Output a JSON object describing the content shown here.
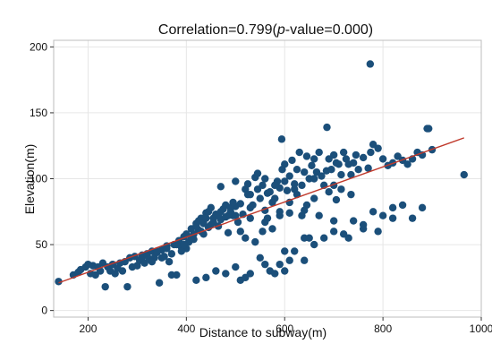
{
  "chart_data": {
    "type": "scatter",
    "title_prefix": "Correlation=0.799(",
    "title_italic": "p",
    "title_suffix": "-value=0.000)",
    "xlabel": "Distance to subway(m)",
    "ylabel": "Elevation(m)",
    "xlim": [
      130,
      1000
    ],
    "ylim": [
      -5,
      205
    ],
    "xticks": [
      200,
      400,
      600,
      800,
      1000
    ],
    "yticks": [
      0,
      50,
      100,
      150,
      200
    ],
    "grid": true,
    "colors": {
      "points": "#1b4f7a",
      "fit_line": "#c0392b"
    },
    "fit_line": {
      "x": [
        140,
        965
      ],
      "y": [
        21,
        131
      ]
    },
    "points": [
      [
        140,
        22
      ],
      [
        170,
        27
      ],
      [
        180,
        29
      ],
      [
        185,
        31
      ],
      [
        195,
        33
      ],
      [
        200,
        35
      ],
      [
        205,
        28
      ],
      [
        210,
        34
      ],
      [
        215,
        27
      ],
      [
        220,
        33
      ],
      [
        225,
        30
      ],
      [
        230,
        36
      ],
      [
        235,
        18
      ],
      [
        240,
        33
      ],
      [
        245,
        30
      ],
      [
        250,
        35
      ],
      [
        255,
        28
      ],
      [
        260,
        32
      ],
      [
        265,
        36
      ],
      [
        270,
        30
      ],
      [
        275,
        37
      ],
      [
        280,
        18
      ],
      [
        285,
        40
      ],
      [
        290,
        33
      ],
      [
        295,
        41
      ],
      [
        300,
        34
      ],
      [
        305,
        38
      ],
      [
        310,
        42
      ],
      [
        315,
        36
      ],
      [
        320,
        43
      ],
      [
        325,
        39
      ],
      [
        330,
        45
      ],
      [
        335,
        40
      ],
      [
        340,
        44
      ],
      [
        345,
        21
      ],
      [
        350,
        46
      ],
      [
        355,
        41
      ],
      [
        360,
        49
      ],
      [
        365,
        37
      ],
      [
        370,
        27
      ],
      [
        375,
        50
      ],
      [
        380,
        27
      ],
      [
        385,
        53
      ],
      [
        390,
        48
      ],
      [
        395,
        56
      ],
      [
        400,
        58
      ],
      [
        405,
        52
      ],
      [
        410,
        62
      ],
      [
        415,
        54
      ],
      [
        420,
        66
      ],
      [
        425,
        61
      ],
      [
        430,
        70
      ],
      [
        435,
        58
      ],
      [
        440,
        74
      ],
      [
        445,
        63
      ],
      [
        450,
        78
      ],
      [
        455,
        67
      ],
      [
        460,
        72
      ],
      [
        465,
        64
      ],
      [
        470,
        69
      ],
      [
        475,
        77
      ],
      [
        480,
        71
      ],
      [
        485,
        59
      ],
      [
        490,
        75
      ],
      [
        495,
        72
      ],
      [
        500,
        79
      ],
      [
        505,
        67
      ],
      [
        510,
        81
      ],
      [
        515,
        73
      ],
      [
        520,
        92
      ],
      [
        525,
        96
      ],
      [
        530,
        88
      ],
      [
        535,
        80
      ],
      [
        540,
        101
      ],
      [
        545,
        104
      ],
      [
        550,
        85
      ],
      [
        555,
        95
      ],
      [
        560,
        76
      ],
      [
        565,
        89
      ],
      [
        570,
        90
      ],
      [
        575,
        82
      ],
      [
        580,
        85
      ],
      [
        585,
        98
      ],
      [
        590,
        93
      ],
      [
        595,
        107
      ],
      [
        600,
        111
      ],
      [
        605,
        91
      ],
      [
        610,
        102
      ],
      [
        615,
        114
      ],
      [
        620,
        96
      ],
      [
        625,
        107
      ],
      [
        630,
        120
      ],
      [
        635,
        95
      ],
      [
        640,
        105
      ],
      [
        645,
        117
      ],
      [
        650,
        100
      ],
      [
        655,
        110
      ],
      [
        660,
        115
      ],
      [
        665,
        105
      ],
      [
        670,
        120
      ],
      [
        675,
        102
      ],
      [
        680,
        95
      ],
      [
        685,
        106
      ],
      [
        690,
        115
      ],
      [
        695,
        107
      ],
      [
        700,
        118
      ],
      [
        705,
        112
      ],
      [
        710,
        111
      ],
      [
        715,
        103
      ],
      [
        720,
        120
      ],
      [
        725,
        115
      ],
      [
        730,
        111
      ],
      [
        735,
        103
      ],
      [
        740,
        112
      ],
      [
        745,
        118
      ],
      [
        750,
        107
      ],
      [
        760,
        116
      ],
      [
        770,
        108
      ],
      [
        775,
        120
      ],
      [
        780,
        126
      ],
      [
        790,
        123
      ],
      [
        800,
        115
      ],
      [
        810,
        110
      ],
      [
        820,
        112
      ],
      [
        830,
        117
      ],
      [
        840,
        114
      ],
      [
        850,
        111
      ],
      [
        860,
        115
      ],
      [
        870,
        120
      ],
      [
        880,
        118
      ],
      [
        890,
        138
      ],
      [
        893,
        138
      ],
      [
        900,
        122
      ],
      [
        965,
        103
      ],
      [
        774,
        187
      ],
      [
        686,
        139
      ],
      [
        594,
        130
      ],
      [
        420,
        23
      ],
      [
        440,
        25
      ],
      [
        460,
        30
      ],
      [
        480,
        28
      ],
      [
        500,
        33
      ],
      [
        510,
        23
      ],
      [
        520,
        25
      ],
      [
        530,
        28
      ],
      [
        550,
        40
      ],
      [
        560,
        35
      ],
      [
        570,
        30
      ],
      [
        580,
        28
      ],
      [
        590,
        35
      ],
      [
        600,
        30
      ],
      [
        610,
        38
      ],
      [
        620,
        45
      ],
      [
        640,
        55
      ],
      [
        660,
        50
      ],
      [
        680,
        55
      ],
      [
        700,
        60
      ],
      [
        720,
        58
      ],
      [
        740,
        68
      ],
      [
        760,
        62
      ],
      [
        780,
        75
      ],
      [
        800,
        72
      ],
      [
        820,
        78
      ],
      [
        840,
        80
      ],
      [
        860,
        70
      ],
      [
        880,
        78
      ],
      [
        640,
        38
      ],
      [
        600,
        45
      ],
      [
        650,
        55
      ],
      [
        700,
        68
      ],
      [
        730,
        55
      ],
      [
        760,
        65
      ],
      [
        790,
        60
      ],
      [
        820,
        70
      ],
      [
        510,
        60
      ],
      [
        520,
        55
      ],
      [
        530,
        70
      ],
      [
        540,
        52
      ],
      [
        555,
        60
      ],
      [
        565,
        70
      ],
      [
        575,
        62
      ],
      [
        590,
        75
      ],
      [
        610,
        82
      ],
      [
        625,
        88
      ],
      [
        635,
        72
      ],
      [
        645,
        80
      ],
      [
        660,
        85
      ],
      [
        670,
        72
      ],
      [
        690,
        90
      ],
      [
        705,
        84
      ],
      [
        715,
        92
      ],
      [
        735,
        88
      ],
      [
        400,
        47
      ],
      [
        405,
        52
      ],
      [
        410,
        55
      ],
      [
        415,
        58
      ],
      [
        420,
        64
      ],
      [
        425,
        68
      ],
      [
        430,
        60
      ],
      [
        435,
        66
      ],
      [
        440,
        70
      ],
      [
        445,
        75
      ],
      [
        450,
        65
      ],
      [
        455,
        70
      ],
      [
        460,
        73
      ],
      [
        465,
        72
      ],
      [
        470,
        75
      ],
      [
        480,
        80
      ],
      [
        485,
        72
      ],
      [
        490,
        78
      ],
      [
        495,
        82
      ],
      [
        500,
        72
      ],
      [
        310,
        40
      ],
      [
        320,
        42
      ],
      [
        330,
        37
      ],
      [
        340,
        45
      ],
      [
        350,
        40
      ],
      [
        360,
        47
      ],
      [
        370,
        43
      ],
      [
        380,
        50
      ],
      [
        390,
        45
      ],
      [
        395,
        50
      ],
      [
        470,
        94
      ],
      [
        500,
        98
      ],
      [
        525,
        88
      ],
      [
        545,
        92
      ],
      [
        560,
        100
      ],
      [
        580,
        95
      ],
      [
        600,
        98
      ],
      [
        620,
        92
      ],
      [
        660,
        100
      ],
      [
        700,
        95
      ],
      [
        530,
        78
      ],
      [
        560,
        67
      ],
      [
        590,
        72
      ],
      [
        610,
        74
      ],
      [
        640,
        76
      ]
    ]
  }
}
